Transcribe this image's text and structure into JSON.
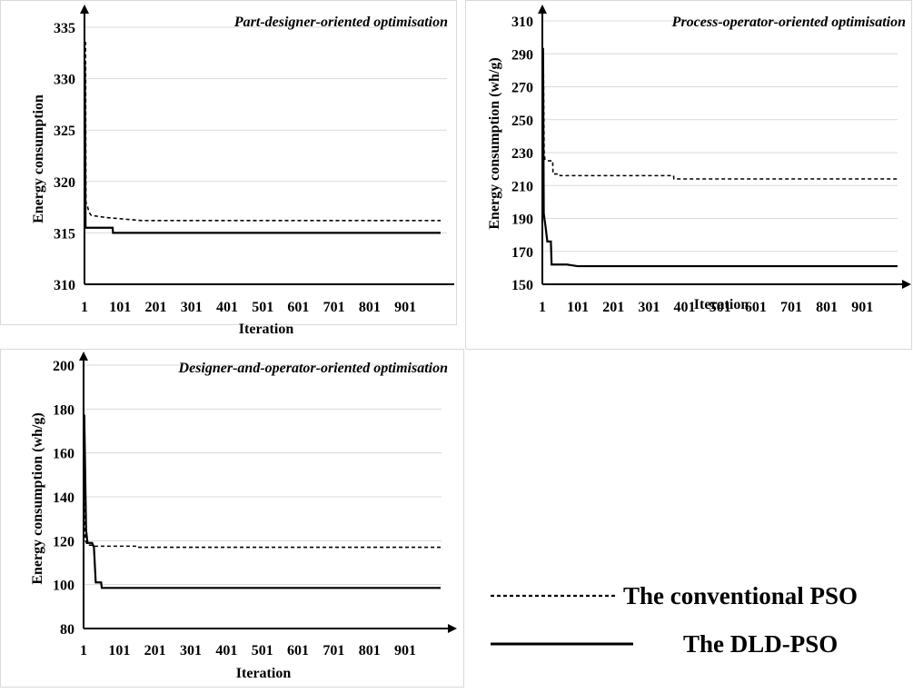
{
  "chart_data": [
    {
      "type": "line",
      "title": "Part-designer-oriented optimisation",
      "xlabel": "Iteration",
      "ylabel": "Energy consumption",
      "ylim": [
        310,
        335
      ],
      "yticks": [
        310,
        315,
        320,
        325,
        330,
        335
      ],
      "xticks": [
        1,
        101,
        201,
        301,
        401,
        501,
        601,
        701,
        801,
        901
      ],
      "xlim": [
        1,
        1000
      ],
      "grid": true,
      "series": [
        {
          "name": "The conventional PSO",
          "style": "dashed",
          "points": [
            [
              1,
              333.5
            ],
            [
              4,
              333.5
            ],
            [
              5,
              318
            ],
            [
              10,
              317.5
            ],
            [
              14,
              317
            ],
            [
              20,
              316.7
            ],
            [
              60,
              316.5
            ],
            [
              160,
              316.2
            ],
            [
              1000,
              316.2
            ]
          ]
        },
        {
          "name": "The DLD-PSO",
          "style": "solid",
          "points": [
            [
              1,
              331.5
            ],
            [
              2,
              331.5
            ],
            [
              4,
              315.5
            ],
            [
              80,
              315.5
            ],
            [
              81,
              315
            ],
            [
              1000,
              315
            ]
          ]
        }
      ]
    },
    {
      "type": "line",
      "title": "Process-operator-oriented optimisation",
      "xlabel": "Iteration",
      "ylabel": "Energy consumption (wh/g)",
      "ylim": [
        150,
        310
      ],
      "yticks": [
        150,
        170,
        190,
        210,
        230,
        250,
        270,
        290,
        310
      ],
      "xticks": [
        1,
        101,
        201,
        301,
        401,
        501,
        601,
        701,
        801,
        901
      ],
      "xlim": [
        1,
        1000
      ],
      "grid": true,
      "series": [
        {
          "name": "The conventional PSO",
          "style": "dashed",
          "points": [
            [
              1,
              285
            ],
            [
              4,
              285
            ],
            [
              6,
              230
            ],
            [
              8,
              226
            ],
            [
              15,
              225
            ],
            [
              30,
              225
            ],
            [
              31,
              217
            ],
            [
              50,
              217
            ],
            [
              51,
              216
            ],
            [
              370,
              216
            ],
            [
              371,
              214
            ],
            [
              1000,
              214
            ]
          ]
        },
        {
          "name": "The DLD-PSO",
          "style": "solid",
          "points": [
            [
              1,
              293
            ],
            [
              3,
              293
            ],
            [
              5,
              193
            ],
            [
              10,
              185
            ],
            [
              15,
              176
            ],
            [
              25,
              176
            ],
            [
              27,
              162
            ],
            [
              70,
              162
            ],
            [
              100,
              161
            ],
            [
              1000,
              161
            ]
          ]
        }
      ]
    },
    {
      "type": "line",
      "title": "Designer-and-operator-oriented optimisation",
      "xlabel": "Iteration",
      "ylabel": "Energy consumption (wh/g)",
      "ylim": [
        80,
        200
      ],
      "yticks": [
        80,
        100,
        120,
        140,
        160,
        180,
        200
      ],
      "xticks": [
        1,
        101,
        201,
        301,
        401,
        501,
        601,
        701,
        801,
        901
      ],
      "xlim": [
        1,
        1000
      ],
      "grid": true,
      "series": [
        {
          "name": "The conventional PSO",
          "style": "dashed",
          "points": [
            [
              1,
              140
            ],
            [
              3,
              140
            ],
            [
              6,
              120
            ],
            [
              12,
              118
            ],
            [
              30,
              118
            ],
            [
              31,
              117.5
            ],
            [
              150,
              117.5
            ],
            [
              151,
              117
            ],
            [
              1000,
              117
            ]
          ]
        },
        {
          "name": "The DLD-PSO",
          "style": "solid",
          "points": [
            [
              1,
              177
            ],
            [
              3,
              177
            ],
            [
              8,
              125
            ],
            [
              12,
              119
            ],
            [
              25,
              119
            ],
            [
              30,
              117
            ],
            [
              35,
              101
            ],
            [
              50,
              101
            ],
            [
              52,
              98.5
            ],
            [
              1000,
              98.5
            ]
          ]
        }
      ]
    }
  ],
  "legend": {
    "entries": [
      {
        "label": "The conventional PSO",
        "style": "dashed"
      },
      {
        "label": "The DLD-PSO",
        "style": "solid"
      }
    ]
  }
}
